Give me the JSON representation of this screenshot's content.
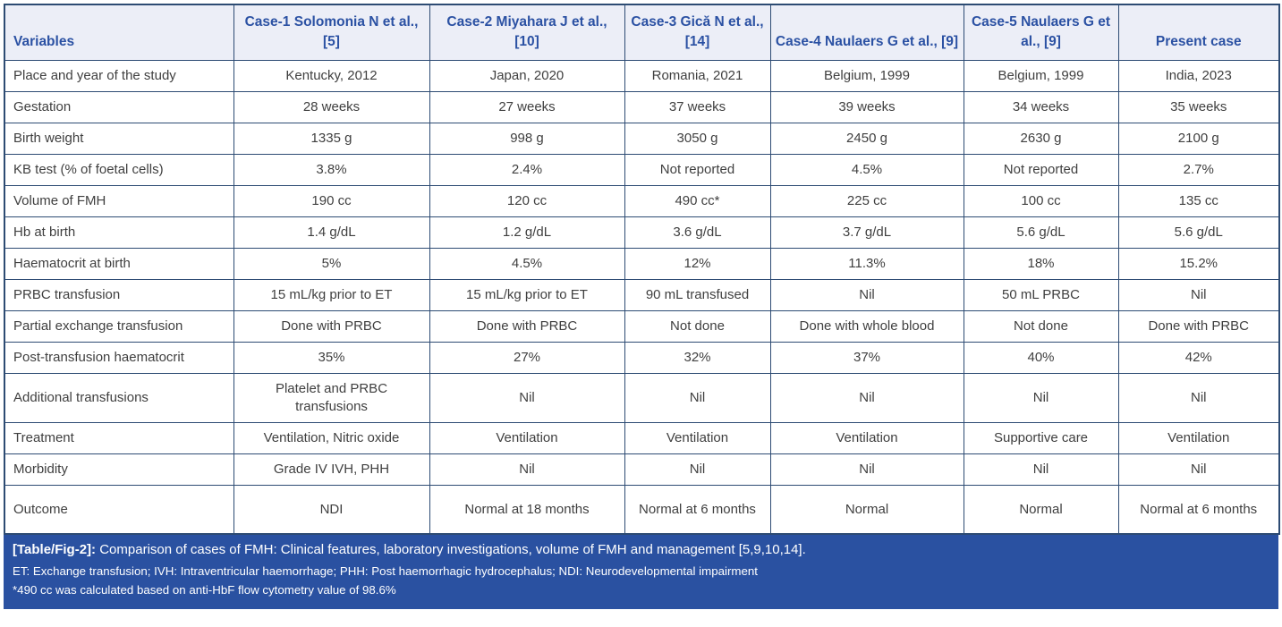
{
  "table": {
    "columns": [
      {
        "label": "Variables"
      },
      {
        "label": "Case-1 Solomonia N et al., [5]"
      },
      {
        "label": "Case-2 Miyahara J et al., [10]"
      },
      {
        "label": "Case-3 Gică N et al., [14]"
      },
      {
        "label": "Case-4 Naulaers G et al., [9]"
      },
      {
        "label": "Case-5 Naulaers G et al., [9]"
      },
      {
        "label": "Present case"
      }
    ],
    "rows": [
      {
        "variable": "Place and year of the study",
        "values": [
          "Kentucky, 2012",
          "Japan, 2020",
          "Romania, 2021",
          "Belgium, 1999",
          "Belgium, 1999",
          "India, 2023"
        ]
      },
      {
        "variable": "Gestation",
        "values": [
          "28 weeks",
          "27 weeks",
          "37 weeks",
          "39 weeks",
          "34 weeks",
          "35 weeks"
        ]
      },
      {
        "variable": "Birth weight",
        "values": [
          "1335 g",
          "998 g",
          "3050 g",
          "2450 g",
          "2630 g",
          "2100 g"
        ]
      },
      {
        "variable": "KB test (% of foetal cells)",
        "values": [
          "3.8%",
          "2.4%",
          "Not reported",
          "4.5%",
          "Not reported",
          "2.7%"
        ]
      },
      {
        "variable": "Volume of FMH",
        "values": [
          "190 cc",
          "120 cc",
          "490 cc*",
          "225 cc",
          "100 cc",
          "135 cc"
        ]
      },
      {
        "variable": "Hb at birth",
        "values": [
          "1.4 g/dL",
          "1.2 g/dL",
          "3.6 g/dL",
          "3.7 g/dL",
          "5.6 g/dL",
          "5.6 g/dL"
        ]
      },
      {
        "variable": "Haematocrit at birth",
        "values": [
          "5%",
          "4.5%",
          "12%",
          "11.3%",
          "18%",
          "15.2%"
        ]
      },
      {
        "variable": "PRBC transfusion",
        "values": [
          "15 mL/kg prior to ET",
          "15 mL/kg prior to ET",
          "90 mL transfused",
          "Nil",
          "50 mL PRBC",
          "Nil"
        ]
      },
      {
        "variable": "Partial exchange transfusion",
        "values": [
          "Done with PRBC",
          "Done with PRBC",
          "Not done",
          "Done with whole blood",
          "Not done",
          "Done with PRBC"
        ]
      },
      {
        "variable": "Post-transfusion haematocrit",
        "values": [
          "35%",
          "27%",
          "32%",
          "37%",
          "40%",
          "42%"
        ]
      },
      {
        "variable": "Additional transfusions",
        "values": [
          "Platelet and PRBC transfusions",
          "Nil",
          "Nil",
          "Nil",
          "Nil",
          "Nil"
        ]
      },
      {
        "variable": "Treatment",
        "values": [
          "Ventilation, Nitric oxide",
          "Ventilation",
          "Ventilation",
          "Ventilation",
          "Supportive care",
          "Ventilation"
        ]
      },
      {
        "variable": "Morbidity",
        "values": [
          "Grade IV IVH, PHH",
          "Nil",
          "Nil",
          "Nil",
          "Nil",
          "Nil"
        ]
      },
      {
        "variable": "Outcome",
        "values": [
          "NDI",
          "Normal at 18 months",
          "Normal at 6 months",
          "Normal",
          "Normal",
          "Normal at 6 months"
        ]
      }
    ]
  },
  "footer": {
    "caption_label": "[Table/Fig-2]:",
    "caption_text": "Comparison of cases of FMH: Clinical features, laboratory investigations, volume of FMH and management [5,9,10,14].",
    "abbreviations": "ET: Exchange transfusion; IVH: Intraventricular haemorrhage; PHH: Post haemorrhagic hydrocephalus; NDI: Neurodevelopmental impairment",
    "footnote": "*490 cc was calculated based on anti-HbF flow cytometry value of 98.6%"
  },
  "colors": {
    "header_bg": "#eceef7",
    "header_text": "#2b51a3",
    "border": "#2d4b73",
    "body_text": "#3f3f3f",
    "caption_bg": "#2a51a1",
    "caption_text": "#ffffff"
  }
}
